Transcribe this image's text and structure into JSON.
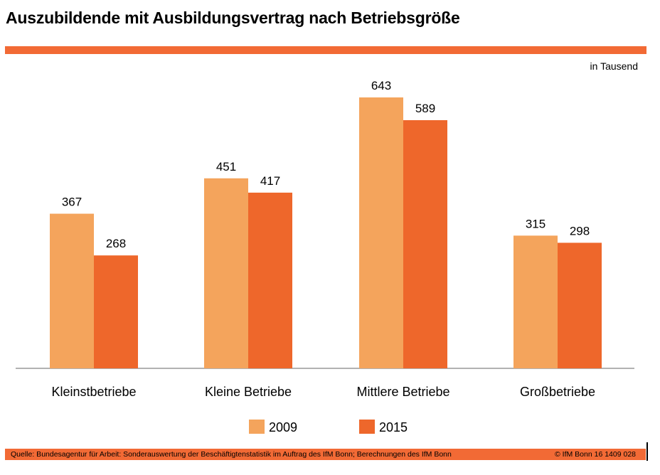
{
  "title": "Auszubildende mit Ausbildungsvertrag nach Betriebsgröße",
  "unit_label": "in Tausend",
  "footer": {
    "source": "Quelle: Bundesagentur für Arbeit: Sonderauswertung der Beschäftigtenstatistik im Auftrag des IfM Bonn; Berechnungen des IfM Bonn",
    "copyright": "© IfM Bonn 16 1409 028"
  },
  "colors": {
    "accent": "#f26a35",
    "series_2009": "#f4a45c",
    "series_2015": "#ee672b"
  },
  "chart_data": {
    "type": "bar",
    "title": "Auszubildende mit Ausbildungsvertrag nach Betriebsgröße",
    "ylabel": "in Tausend",
    "categories": [
      "Kleinstbetriebe",
      "Kleine Betriebe",
      "Mittlere Betriebe",
      "Großbetriebe"
    ],
    "series": [
      {
        "name": "2009",
        "values": [
          367,
          451,
          643,
          315
        ],
        "color": "#f4a45c"
      },
      {
        "name": "2015",
        "values": [
          268,
          417,
          589,
          298
        ],
        "color": "#ee672b"
      }
    ],
    "ylim": [
      0,
      680
    ],
    "grid": false,
    "legend": "bottom"
  }
}
